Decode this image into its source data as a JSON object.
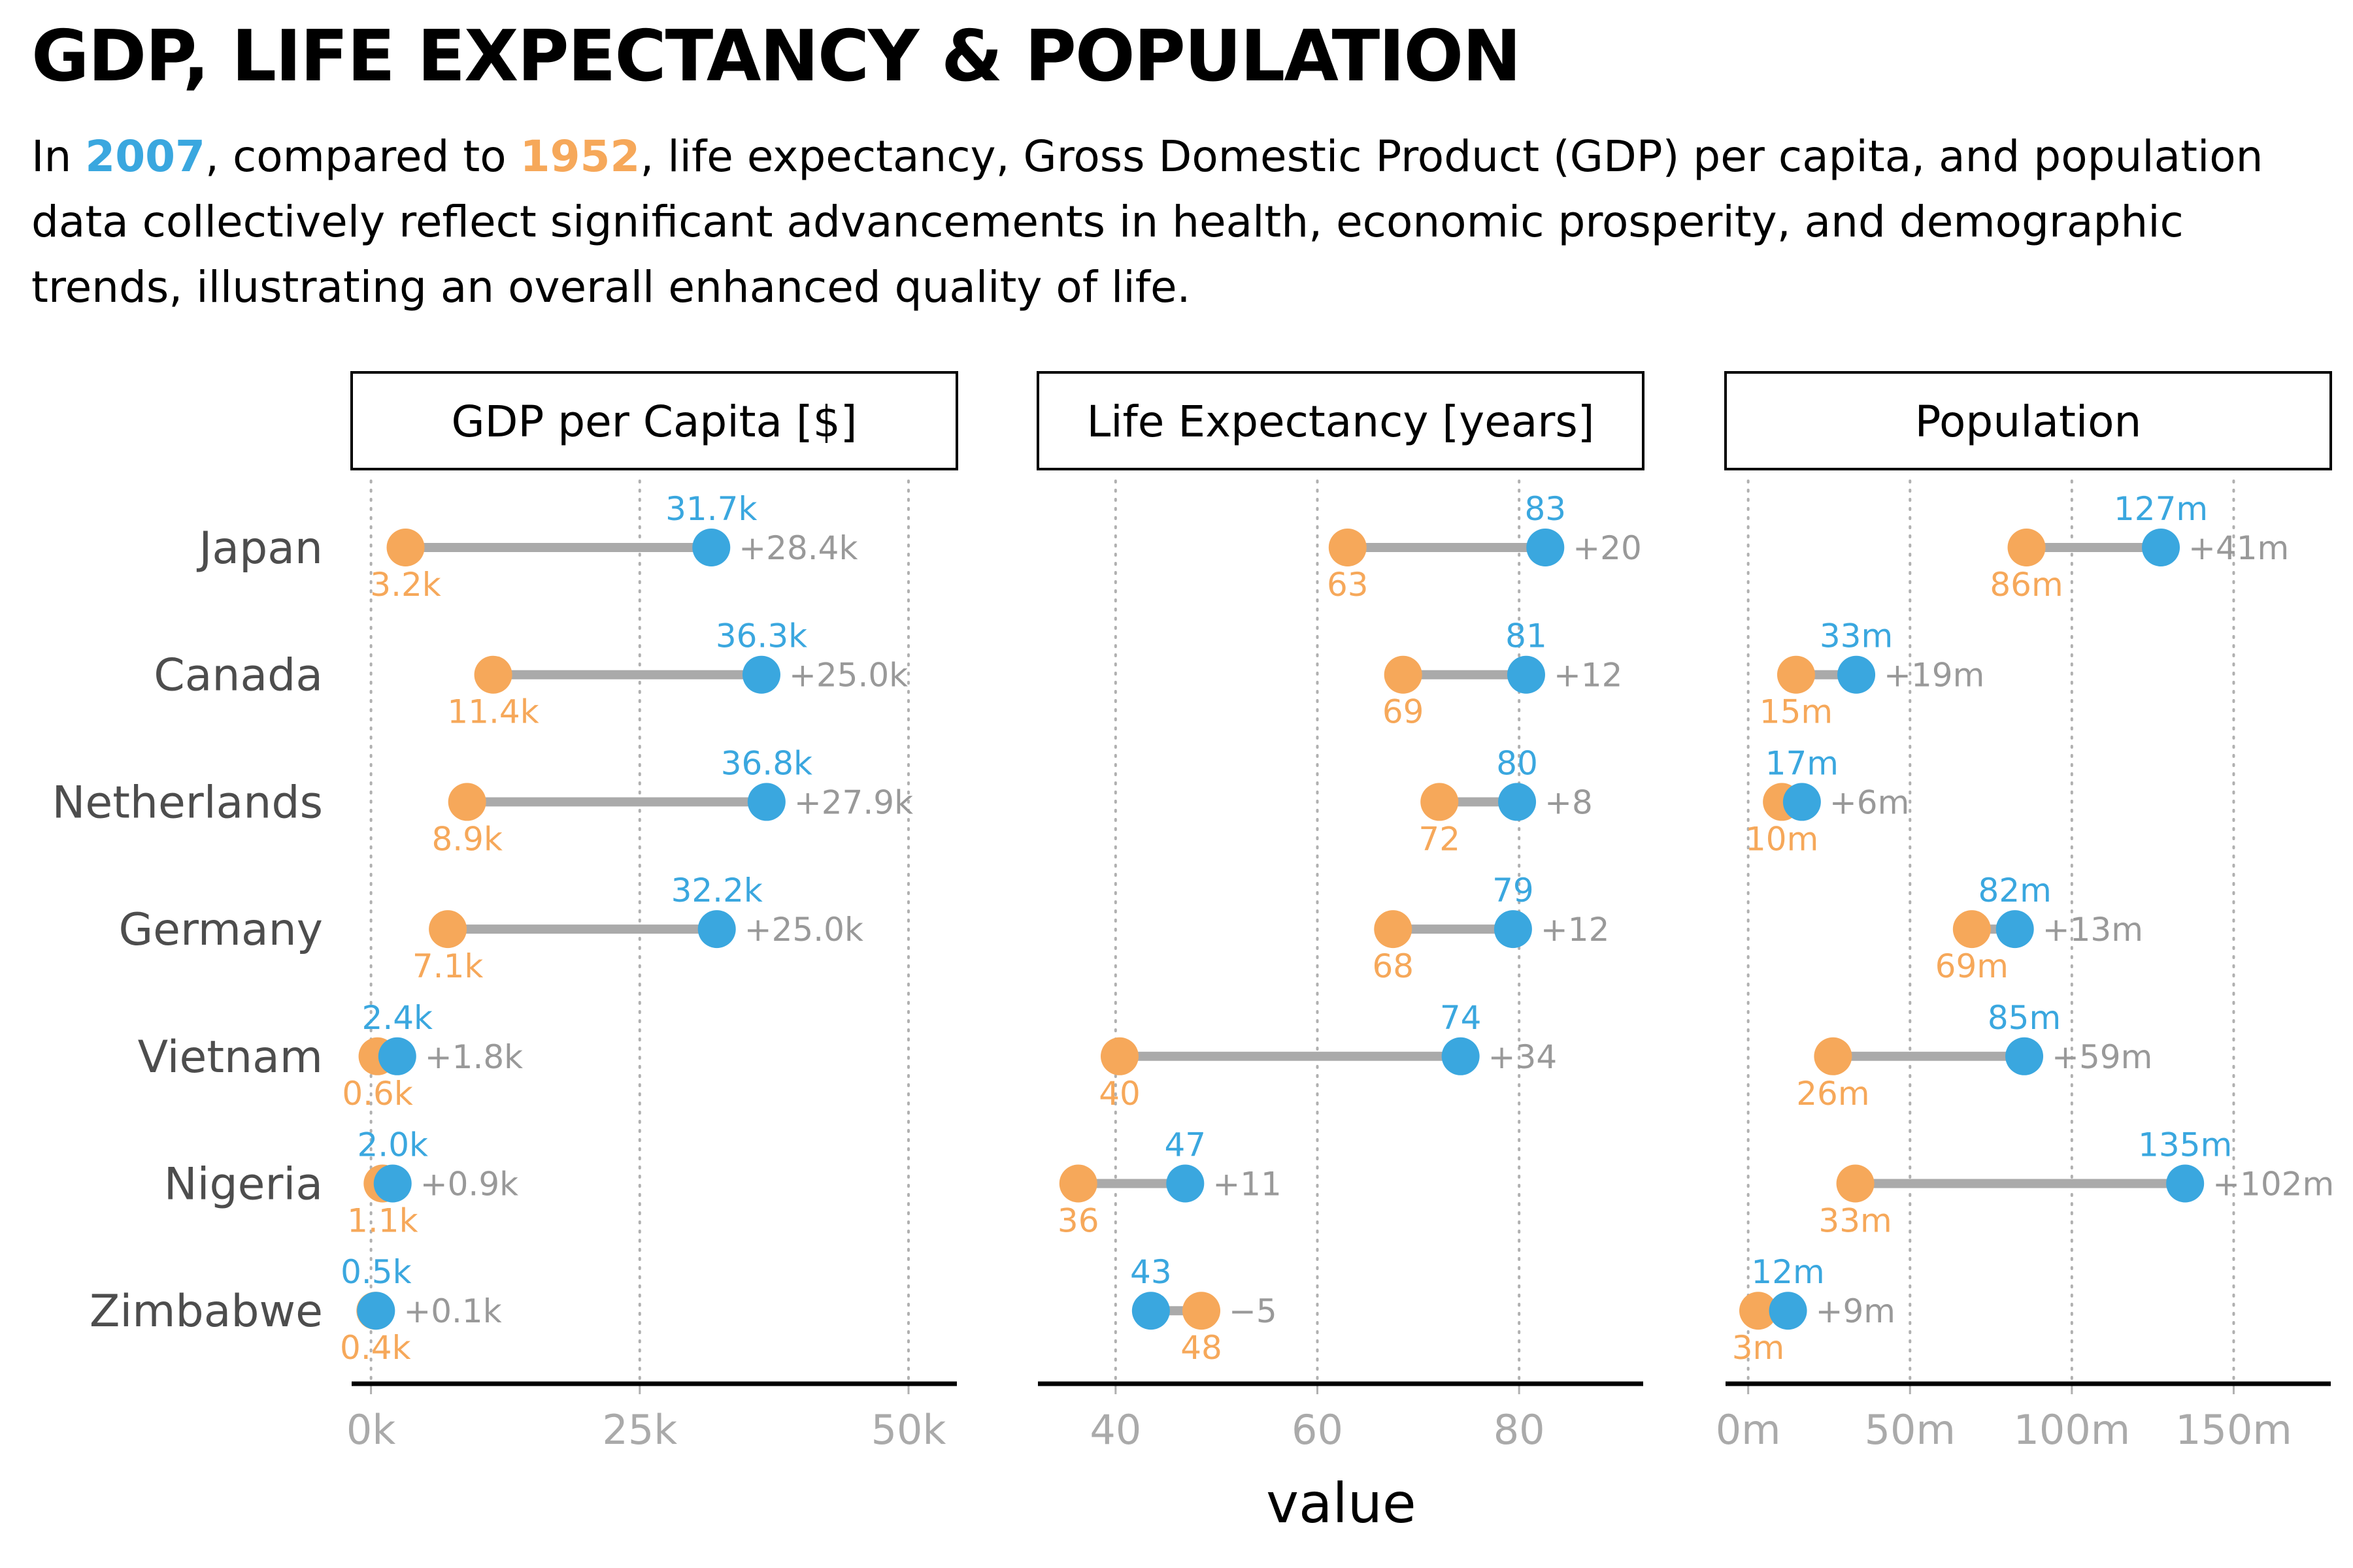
{
  "title": "GDP, LIFE EXPECTANCY & POPULATION",
  "subtitle": {
    "part1": "In ",
    "year_new": "2007",
    "part2": ", compared to ",
    "year_old": "1952",
    "part3": ", life expectancy, Gross Domestic Product (GDP) per capita, and population data collectively reflect significant advancements in health, economic prosperity, and demographic trends, illustrating an overall enhanced quality of life."
  },
  "colors": {
    "year_new": "#3aa7df",
    "year_old": "#f6a85a",
    "segment": "#aaaaaa",
    "diff_label": "#999999",
    "axis_tick": "#aaaaaa",
    "country": "#4d4d4d"
  },
  "chart_data": {
    "type": "dumbbell",
    "xlabel": "value",
    "countries": [
      "Japan",
      "Canada",
      "Netherlands",
      "Germany",
      "Vietnam",
      "Nigeria",
      "Zimbabwe"
    ],
    "legend": "none (years indicated by coloured text in subtitle)",
    "grid": "vertical dotted major gridlines",
    "panels": [
      {
        "title": "GDP per Capita [$]",
        "xlim": [
          -1800,
          54500
        ],
        "ticks": [
          {
            "value": 0,
            "label": "0k"
          },
          {
            "value": 25000,
            "label": "25k"
          },
          {
            "value": 50000,
            "label": "50k"
          }
        ],
        "series": [
          {
            "year": "1952",
            "values": [
              3217,
              11367,
              8942,
              7144,
              605,
              1077,
              407
            ],
            "labels": [
              "3.2k",
              "11.4k",
              "8.9k",
              "7.1k",
              "0.6k",
              "1.1k",
              "0.4k"
            ]
          },
          {
            "year": "2007",
            "values": [
              31656,
              36319,
              36798,
              32170,
              2442,
              2014,
              470
            ],
            "labels": [
              "31.7k",
              "36.3k",
              "36.8k",
              "32.2k",
              "2.4k",
              "2.0k",
              "0.5k"
            ]
          }
        ],
        "diffs": [
          "+28.4k",
          "+25.0k",
          "+27.9k",
          "+25.0k",
          "+1.8k",
          "+0.9k",
          "+0.1k"
        ]
      },
      {
        "title": "Life Expectancy [years]",
        "xlim": [
          32.3,
          92.3
        ],
        "ticks": [
          {
            "value": 40,
            "label": "40"
          },
          {
            "value": 60,
            "label": "60"
          },
          {
            "value": 80,
            "label": "80"
          }
        ],
        "series": [
          {
            "year": "1952",
            "values": [
              63,
              68.5,
              72.1,
              67.5,
              40.4,
              36.3,
              48.5
            ],
            "labels": [
              "63",
              "69",
              "72",
              "68",
              "40",
              "36",
              "48"
            ]
          },
          {
            "year": "2007",
            "values": [
              82.6,
              80.7,
              79.8,
              79.4,
              74.2,
              46.9,
              43.5
            ],
            "labels": [
              "83",
              "81",
              "80",
              "79",
              "74",
              "47",
              "43"
            ]
          }
        ],
        "diffs": [
          "+20",
          "+12",
          "+8",
          "+12",
          "+34",
          "+11",
          "−5"
        ]
      },
      {
        "title": "Population",
        "xlim": [
          -7000000,
          180000000
        ],
        "ticks": [
          {
            "value": 0,
            "label": "0m"
          },
          {
            "value": 50000000,
            "label": "50m"
          },
          {
            "value": 100000000,
            "label": "100m"
          },
          {
            "value": 150000000,
            "label": "150m"
          }
        ],
        "series": [
          {
            "year": "1952",
            "values": [
              86000000,
              14800000,
              10400000,
              69100000,
              26200000,
              33100000,
              3100000
            ],
            "labels": [
              "86m",
              "15m",
              "10m",
              "69m",
              "26m",
              "33m",
              "3m"
            ]
          },
          {
            "year": "2007",
            "values": [
              127500000,
              33400000,
              16600000,
              82400000,
              85300000,
              135000000,
              12300000
            ],
            "labels": [
              "127m",
              "33m",
              "17m",
              "82m",
              "85m",
              "135m",
              "12m"
            ]
          }
        ],
        "diffs": [
          "+41m",
          "+19m",
          "+6m",
          "+13m",
          "+59m",
          "+102m",
          "+9m"
        ]
      }
    ]
  }
}
